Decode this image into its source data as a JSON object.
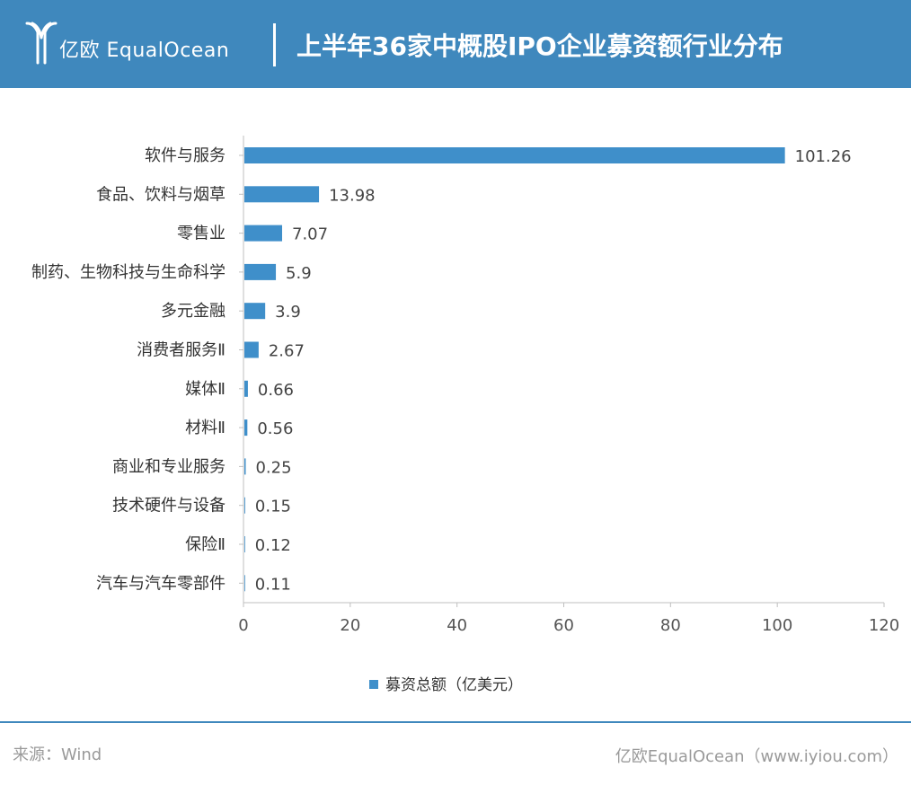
{
  "header": {
    "logo_text": "亿欧 EqualOcean",
    "title": "上半年36家中概股IPO企业募资额行业分布"
  },
  "chart_data": {
    "type": "bar",
    "orientation": "horizontal",
    "categories": [
      "软件与服务",
      "食品、饮料与烟草",
      "零售业",
      "制药、生物科技与生命科学",
      "多元金融",
      "消费者服务Ⅱ",
      "媒体Ⅱ",
      "材料Ⅱ",
      "商业和专业服务",
      "技术硬件与设备",
      "保险Ⅱ",
      "汽车与汽车零部件"
    ],
    "series": [
      {
        "name": "募资总额（亿美元）",
        "values": [
          101.26,
          13.98,
          7.07,
          5.9,
          3.9,
          2.67,
          0.66,
          0.56,
          0.25,
          0.15,
          0.12,
          0.11
        ],
        "value_labels": [
          "101.26",
          "13.98",
          "7.07",
          "5.9",
          "3.9",
          "2.67",
          "0.66",
          "0.56",
          "0.25",
          "0.15",
          "0.12",
          "0.11"
        ]
      }
    ],
    "xlim": [
      0,
      120
    ],
    "xticks": [
      0,
      20,
      40,
      60,
      80,
      100,
      120
    ],
    "grid": false,
    "legend_position": "bottom",
    "bar_color": "#3f8fca"
  },
  "footer": {
    "source": "来源：Wind",
    "credit": "亿欧EqualOcean（www.iyiou.com）"
  },
  "colors": {
    "header_bg": "#3f88bd",
    "bar": "#3f8fca"
  }
}
